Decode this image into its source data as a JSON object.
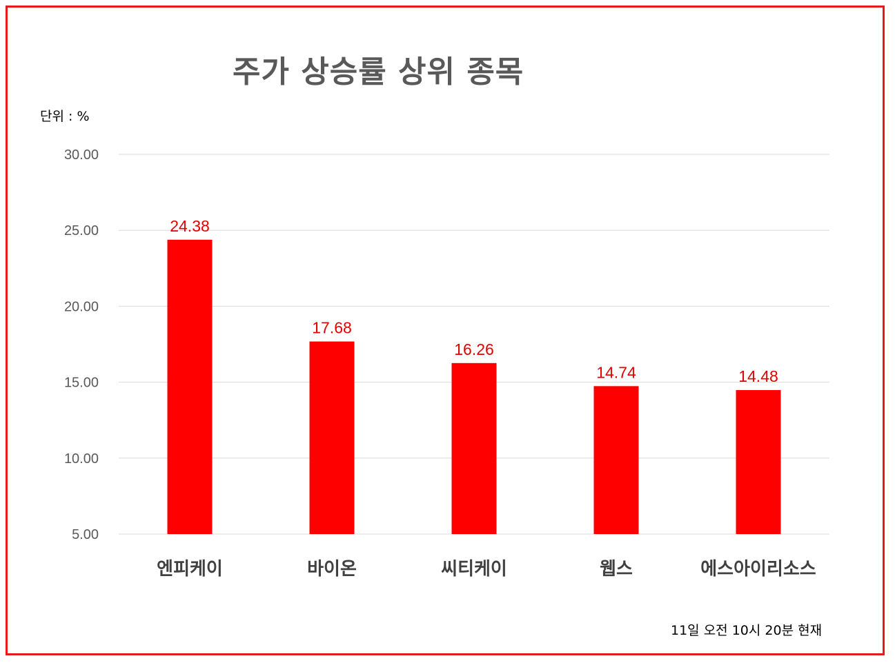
{
  "chart_data": {
    "type": "bar",
    "title": "주가 상승률 상위 종목",
    "unit_label": "단위 : %",
    "footnote": "11일  오전 10시 20분 현재",
    "categories": [
      "엔피케이",
      "바이온",
      "씨티케이",
      "웹스",
      "에스아이리소스"
    ],
    "values": [
      24.38,
      17.68,
      16.26,
      14.74,
      14.48
    ],
    "value_labels": [
      "24.38",
      "17.68",
      "16.26",
      "14.74",
      "14.48"
    ],
    "ylim": [
      5,
      30
    ],
    "yticks": [
      "5.00",
      "10.00",
      "15.00",
      "20.00",
      "25.00",
      "30.00"
    ],
    "ytick_values": [
      5,
      10,
      15,
      20,
      25,
      30
    ],
    "grid": true,
    "bar_color": "#ff0000",
    "label_color": "#e00000",
    "grid_color": "#d9d9d9",
    "border_color": "#e8191b"
  }
}
